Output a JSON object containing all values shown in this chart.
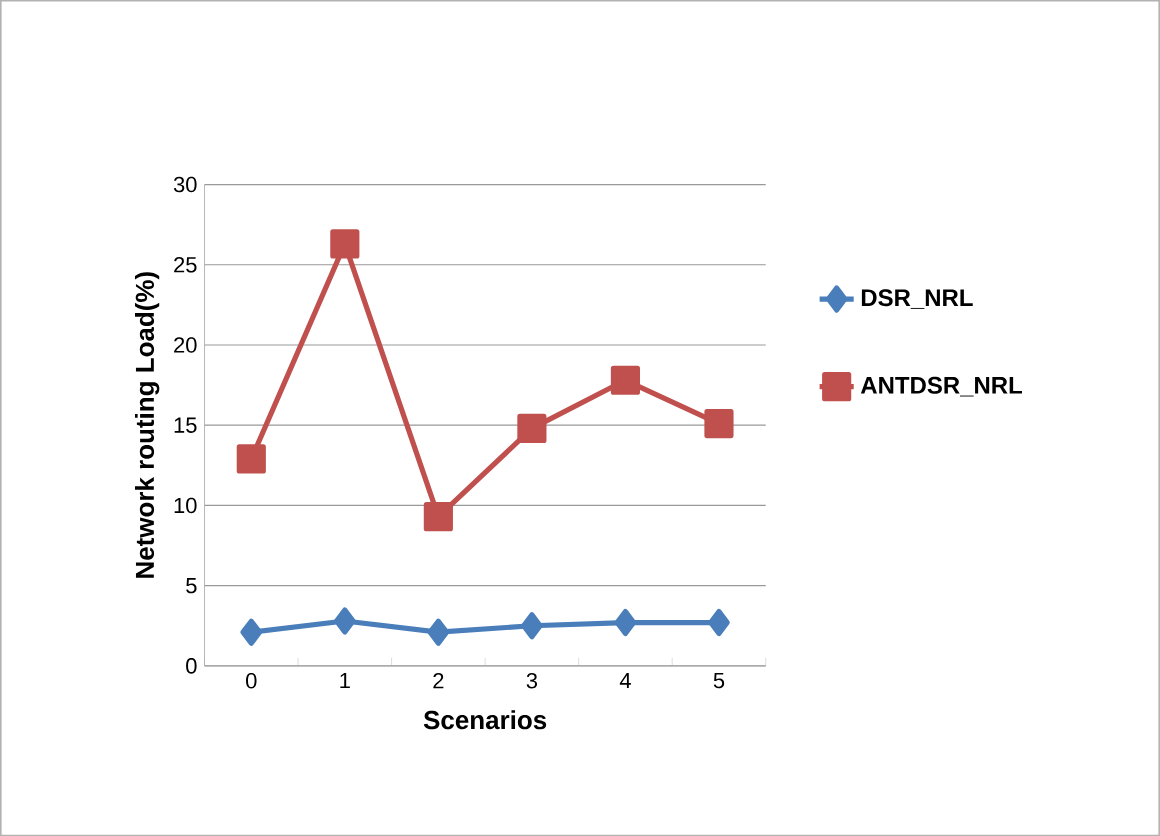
{
  "chart_data": {
    "type": "line",
    "xlabel": "Scenarios",
    "ylabel": "Network routing Load(%)",
    "categories": [
      "0",
      "1",
      "2",
      "3",
      "4",
      "5"
    ],
    "series": [
      {
        "name": "DSR_NRL",
        "color": "#4a7ebb",
        "marker": "diamond",
        "values": [
          2.1,
          2.8,
          2.1,
          2.5,
          2.7,
          2.7
        ]
      },
      {
        "name": "ANTDSR_NRL",
        "color": "#c0504d",
        "marker": "square",
        "values": [
          12.9,
          26.3,
          9.3,
          14.8,
          17.8,
          15.1
        ]
      }
    ],
    "ylim": [
      0,
      30
    ],
    "yticks": [
      0,
      5,
      10,
      15,
      20,
      25,
      30
    ],
    "grid": "y",
    "legend": "right"
  }
}
